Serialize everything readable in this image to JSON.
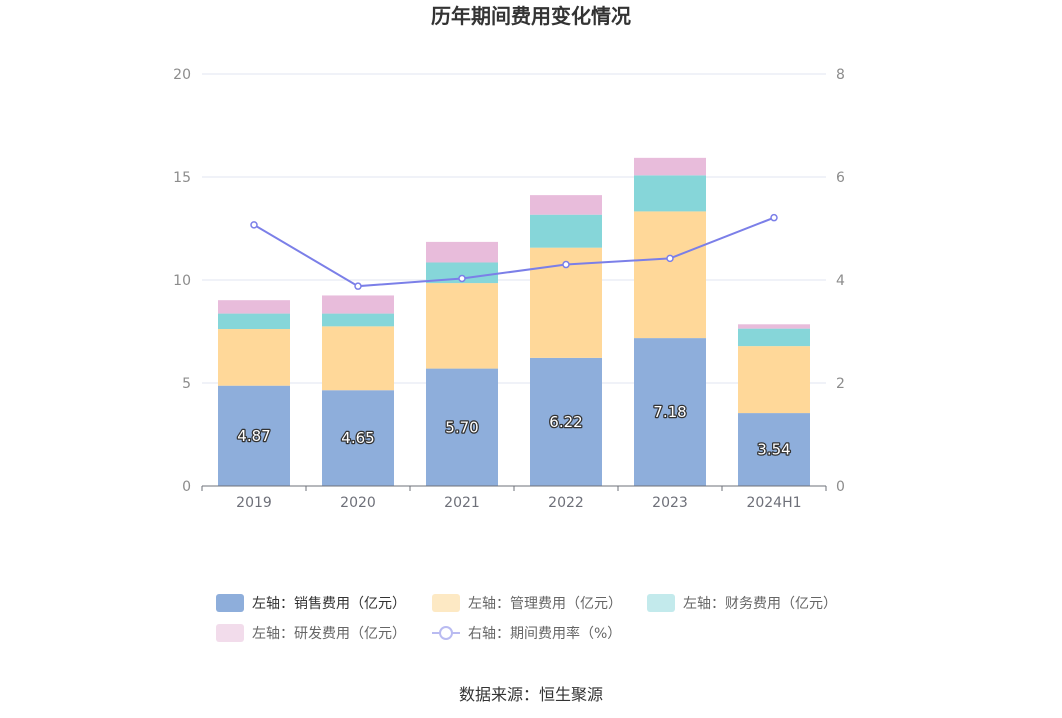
{
  "chart_data": {
    "type": "bar",
    "stacked": true,
    "title": "历年期间费用变化情况",
    "categories": [
      "2019",
      "2020",
      "2021",
      "2022",
      "2023",
      "2024H1"
    ],
    "series": [
      {
        "name": "左轴：销售费用（亿元）",
        "axis": "left",
        "color": "#8eaedb",
        "values": [
          4.87,
          4.65,
          5.7,
          6.22,
          7.18,
          3.54
        ],
        "labels": [
          "4.87",
          "4.65",
          "5.70",
          "6.22",
          "7.18",
          "3.54"
        ]
      },
      {
        "name": "左轴：管理费用（亿元）",
        "axis": "left",
        "color": "#ffd899",
        "values": [
          2.75,
          3.1,
          4.15,
          5.35,
          6.15,
          3.25
        ]
      },
      {
        "name": "左轴：财务费用（亿元）",
        "axis": "left",
        "color": "#86d6d9",
        "values": [
          0.75,
          0.62,
          1.0,
          1.6,
          1.75,
          0.85
        ]
      },
      {
        "name": "左轴：研发费用（亿元）",
        "axis": "left",
        "color": "#e8bcdb",
        "values": [
          0.65,
          0.88,
          1.0,
          0.95,
          0.85,
          0.21
        ]
      },
      {
        "name": "右轴：期间费用率（%）",
        "axis": "right",
        "type": "line",
        "color": "#7b7fe8",
        "values": [
          5.07,
          3.88,
          4.03,
          4.3,
          4.42,
          5.21
        ]
      }
    ],
    "y_left": {
      "min": 0,
      "max": 20,
      "ticks": [
        "0",
        "5",
        "10",
        "15",
        "20"
      ]
    },
    "y_right": {
      "min": 0,
      "max": 8,
      "ticks": [
        "0",
        "2",
        "4",
        "6",
        "8"
      ]
    },
    "grid": true,
    "legend_position": "bottom",
    "legend_swatch_colors": [
      "#8eaedb",
      "#fde9c4",
      "#c3eaec",
      "#f2dceb",
      "#b9bbf1"
    ],
    "source": "数据来源：恒生聚源"
  }
}
